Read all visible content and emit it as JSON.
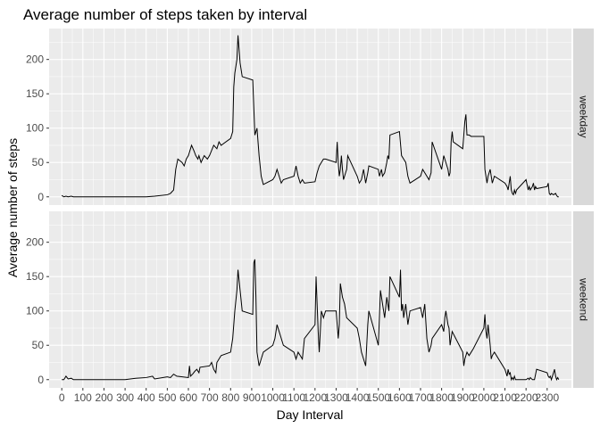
{
  "chart_data": {
    "type": "line",
    "title": "Average number of steps taken by interval",
    "xlabel": "Day Interval",
    "ylabel": "Average number of steps",
    "xlim": [
      -60,
      2415
    ],
    "ylim": [
      -12,
      245
    ],
    "x_ticks": [
      0,
      100,
      200,
      300,
      400,
      500,
      600,
      700,
      800,
      900,
      1000,
      1100,
      1200,
      1300,
      1400,
      1500,
      1600,
      1700,
      1800,
      1900,
      2000,
      2100,
      2200,
      2300
    ],
    "y_ticks": [
      0,
      50,
      100,
      150,
      200
    ],
    "grid": true,
    "line_color": "#000000",
    "panel_background": "#ebebeb",
    "strip_background": "#d9d9d9",
    "panels": [
      {
        "name": "weekday",
        "points": [
          [
            0,
            2
          ],
          [
            10,
            0
          ],
          [
            20,
            1
          ],
          [
            30,
            0
          ],
          [
            45,
            1
          ],
          [
            55,
            0
          ],
          [
            100,
            0
          ],
          [
            200,
            0
          ],
          [
            300,
            0
          ],
          [
            400,
            0
          ],
          [
            440,
            1
          ],
          [
            500,
            3
          ],
          [
            515,
            5
          ],
          [
            530,
            10
          ],
          [
            540,
            40
          ],
          [
            550,
            55
          ],
          [
            570,
            50
          ],
          [
            580,
            45
          ],
          [
            590,
            55
          ],
          [
            600,
            60
          ],
          [
            610,
            70
          ],
          [
            615,
            75
          ],
          [
            625,
            68
          ],
          [
            635,
            60
          ],
          [
            645,
            55
          ],
          [
            650,
            60
          ],
          [
            660,
            50
          ],
          [
            675,
            60
          ],
          [
            690,
            55
          ],
          [
            700,
            60
          ],
          [
            720,
            75
          ],
          [
            735,
            70
          ],
          [
            745,
            80
          ],
          [
            755,
            75
          ],
          [
            800,
            85
          ],
          [
            810,
            95
          ],
          [
            815,
            160
          ],
          [
            820,
            180
          ],
          [
            830,
            200
          ],
          [
            835,
            235
          ],
          [
            845,
            195
          ],
          [
            855,
            175
          ],
          [
            905,
            170
          ],
          [
            915,
            90
          ],
          [
            925,
            100
          ],
          [
            935,
            60
          ],
          [
            945,
            30
          ],
          [
            955,
            18
          ],
          [
            1000,
            25
          ],
          [
            1010,
            30
          ],
          [
            1020,
            40
          ],
          [
            1030,
            30
          ],
          [
            1040,
            20
          ],
          [
            1050,
            25
          ],
          [
            1100,
            30
          ],
          [
            1110,
            45
          ],
          [
            1120,
            30
          ],
          [
            1130,
            20
          ],
          [
            1140,
            25
          ],
          [
            1150,
            20
          ],
          [
            1200,
            22
          ],
          [
            1210,
            35
          ],
          [
            1220,
            45
          ],
          [
            1230,
            50
          ],
          [
            1240,
            55
          ],
          [
            1250,
            55
          ],
          [
            1300,
            50
          ],
          [
            1305,
            80
          ],
          [
            1310,
            50
          ],
          [
            1315,
            30
          ],
          [
            1320,
            40
          ],
          [
            1325,
            60
          ],
          [
            1330,
            40
          ],
          [
            1335,
            25
          ],
          [
            1340,
            30
          ],
          [
            1350,
            40
          ],
          [
            1355,
            60
          ],
          [
            1400,
            30
          ],
          [
            1410,
            20
          ],
          [
            1420,
            25
          ],
          [
            1430,
            40
          ],
          [
            1440,
            20
          ],
          [
            1450,
            35
          ],
          [
            1455,
            45
          ],
          [
            1500,
            40
          ],
          [
            1505,
            30
          ],
          [
            1510,
            35
          ],
          [
            1515,
            40
          ],
          [
            1520,
            30
          ],
          [
            1530,
            35
          ],
          [
            1540,
            50
          ],
          [
            1545,
            60
          ],
          [
            1550,
            55
          ],
          [
            1555,
            90
          ],
          [
            1600,
            95
          ],
          [
            1610,
            60
          ],
          [
            1620,
            55
          ],
          [
            1630,
            50
          ],
          [
            1640,
            30
          ],
          [
            1650,
            20
          ],
          [
            1700,
            30
          ],
          [
            1710,
            40
          ],
          [
            1720,
            35
          ],
          [
            1730,
            30
          ],
          [
            1740,
            25
          ],
          [
            1750,
            35
          ],
          [
            1755,
            80
          ],
          [
            1800,
            40
          ],
          [
            1810,
            60
          ],
          [
            1820,
            50
          ],
          [
            1830,
            40
          ],
          [
            1835,
            30
          ],
          [
            1840,
            35
          ],
          [
            1845,
            80
          ],
          [
            1850,
            95
          ],
          [
            1855,
            80
          ],
          [
            1900,
            70
          ],
          [
            1910,
            110
          ],
          [
            1915,
            120
          ],
          [
            1920,
            90
          ],
          [
            1930,
            90
          ],
          [
            1940,
            88
          ],
          [
            2000,
            88
          ],
          [
            2005,
            40
          ],
          [
            2010,
            30
          ],
          [
            2015,
            20
          ],
          [
            2020,
            30
          ],
          [
            2030,
            40
          ],
          [
            2040,
            20
          ],
          [
            2050,
            30
          ],
          [
            2100,
            20
          ],
          [
            2110,
            15
          ],
          [
            2115,
            10
          ],
          [
            2120,
            20
          ],
          [
            2125,
            30
          ],
          [
            2130,
            10
          ],
          [
            2135,
            5
          ],
          [
            2140,
            3
          ],
          [
            2145,
            10
          ],
          [
            2150,
            5
          ],
          [
            2155,
            10
          ],
          [
            2200,
            25
          ],
          [
            2210,
            10
          ],
          [
            2215,
            15
          ],
          [
            2220,
            10
          ],
          [
            2230,
            15
          ],
          [
            2235,
            20
          ],
          [
            2240,
            10
          ],
          [
            2245,
            15
          ],
          [
            2250,
            12
          ],
          [
            2300,
            15
          ],
          [
            2305,
            20
          ],
          [
            2310,
            5
          ],
          [
            2315,
            3
          ],
          [
            2320,
            5
          ],
          [
            2330,
            3
          ],
          [
            2340,
            5
          ],
          [
            2345,
            2
          ],
          [
            2350,
            0
          ],
          [
            2355,
            0
          ]
        ]
      },
      {
        "name": "weekend",
        "points": [
          [
            0,
            0
          ],
          [
            10,
            0
          ],
          [
            20,
            5
          ],
          [
            30,
            1
          ],
          [
            45,
            2
          ],
          [
            55,
            0
          ],
          [
            100,
            0
          ],
          [
            200,
            0
          ],
          [
            300,
            0
          ],
          [
            350,
            2
          ],
          [
            400,
            3
          ],
          [
            430,
            5
          ],
          [
            440,
            1
          ],
          [
            500,
            4
          ],
          [
            515,
            3
          ],
          [
            530,
            8
          ],
          [
            545,
            5
          ],
          [
            600,
            3
          ],
          [
            605,
            20
          ],
          [
            610,
            5
          ],
          [
            620,
            8
          ],
          [
            630,
            12
          ],
          [
            640,
            15
          ],
          [
            650,
            10
          ],
          [
            655,
            18
          ],
          [
            700,
            20
          ],
          [
            710,
            25
          ],
          [
            720,
            15
          ],
          [
            730,
            10
          ],
          [
            735,
            25
          ],
          [
            745,
            30
          ],
          [
            755,
            35
          ],
          [
            800,
            40
          ],
          [
            810,
            60
          ],
          [
            815,
            80
          ],
          [
            820,
            100
          ],
          [
            830,
            130
          ],
          [
            835,
            160
          ],
          [
            845,
            130
          ],
          [
            855,
            100
          ],
          [
            905,
            95
          ],
          [
            910,
            170
          ],
          [
            915,
            175
          ],
          [
            920,
            120
          ],
          [
            925,
            40
          ],
          [
            935,
            20
          ],
          [
            945,
            30
          ],
          [
            955,
            40
          ],
          [
            1000,
            50
          ],
          [
            1010,
            60
          ],
          [
            1020,
            80
          ],
          [
            1030,
            70
          ],
          [
            1040,
            60
          ],
          [
            1050,
            50
          ],
          [
            1100,
            40
          ],
          [
            1110,
            30
          ],
          [
            1120,
            40
          ],
          [
            1130,
            35
          ],
          [
            1140,
            30
          ],
          [
            1150,
            60
          ],
          [
            1200,
            80
          ],
          [
            1205,
            150
          ],
          [
            1210,
            110
          ],
          [
            1215,
            70
          ],
          [
            1220,
            40
          ],
          [
            1230,
            100
          ],
          [
            1240,
            90
          ],
          [
            1250,
            100
          ],
          [
            1300,
            100
          ],
          [
            1310,
            60
          ],
          [
            1315,
            80
          ],
          [
            1320,
            140
          ],
          [
            1330,
            120
          ],
          [
            1340,
            110
          ],
          [
            1350,
            90
          ],
          [
            1400,
            75
          ],
          [
            1410,
            60
          ],
          [
            1420,
            40
          ],
          [
            1430,
            30
          ],
          [
            1440,
            20
          ],
          [
            1450,
            80
          ],
          [
            1455,
            100
          ],
          [
            1500,
            50
          ],
          [
            1510,
            130
          ],
          [
            1520,
            110
          ],
          [
            1530,
            90
          ],
          [
            1540,
            120
          ],
          [
            1550,
            100
          ],
          [
            1555,
            150
          ],
          [
            1600,
            120
          ],
          [
            1605,
            160
          ],
          [
            1610,
            100
          ],
          [
            1615,
            110
          ],
          [
            1620,
            90
          ],
          [
            1630,
            110
          ],
          [
            1640,
            80
          ],
          [
            1650,
            100
          ],
          [
            1700,
            105
          ],
          [
            1710,
            90
          ],
          [
            1720,
            110
          ],
          [
            1730,
            60
          ],
          [
            1740,
            40
          ],
          [
            1750,
            50
          ],
          [
            1755,
            60
          ],
          [
            1800,
            80
          ],
          [
            1810,
            70
          ],
          [
            1815,
            90
          ],
          [
            1820,
            100
          ],
          [
            1830,
            80
          ],
          [
            1835,
            75
          ],
          [
            1840,
            50
          ],
          [
            1850,
            70
          ],
          [
            1900,
            40
          ],
          [
            1905,
            20
          ],
          [
            1910,
            30
          ],
          [
            1920,
            40
          ],
          [
            1930,
            35
          ],
          [
            1940,
            40
          ],
          [
            1950,
            45
          ],
          [
            2000,
            75
          ],
          [
            2005,
            95
          ],
          [
            2010,
            70
          ],
          [
            2015,
            60
          ],
          [
            2020,
            80
          ],
          [
            2030,
            50
          ],
          [
            2035,
            30
          ],
          [
            2040,
            35
          ],
          [
            2050,
            40
          ],
          [
            2100,
            15
          ],
          [
            2110,
            5
          ],
          [
            2115,
            15
          ],
          [
            2120,
            8
          ],
          [
            2125,
            10
          ],
          [
            2130,
            0
          ],
          [
            2135,
            3
          ],
          [
            2140,
            0
          ],
          [
            2145,
            5
          ],
          [
            2150,
            0
          ],
          [
            2200,
            0
          ],
          [
            2210,
            2
          ],
          [
            2215,
            0
          ],
          [
            2220,
            3
          ],
          [
            2230,
            0
          ],
          [
            2240,
            0
          ],
          [
            2250,
            15
          ],
          [
            2300,
            10
          ],
          [
            2305,
            5
          ],
          [
            2310,
            3
          ],
          [
            2315,
            5
          ],
          [
            2320,
            0
          ],
          [
            2330,
            10
          ],
          [
            2335,
            15
          ],
          [
            2340,
            5
          ],
          [
            2345,
            0
          ],
          [
            2350,
            3
          ],
          [
            2355,
            0
          ]
        ]
      }
    ]
  }
}
